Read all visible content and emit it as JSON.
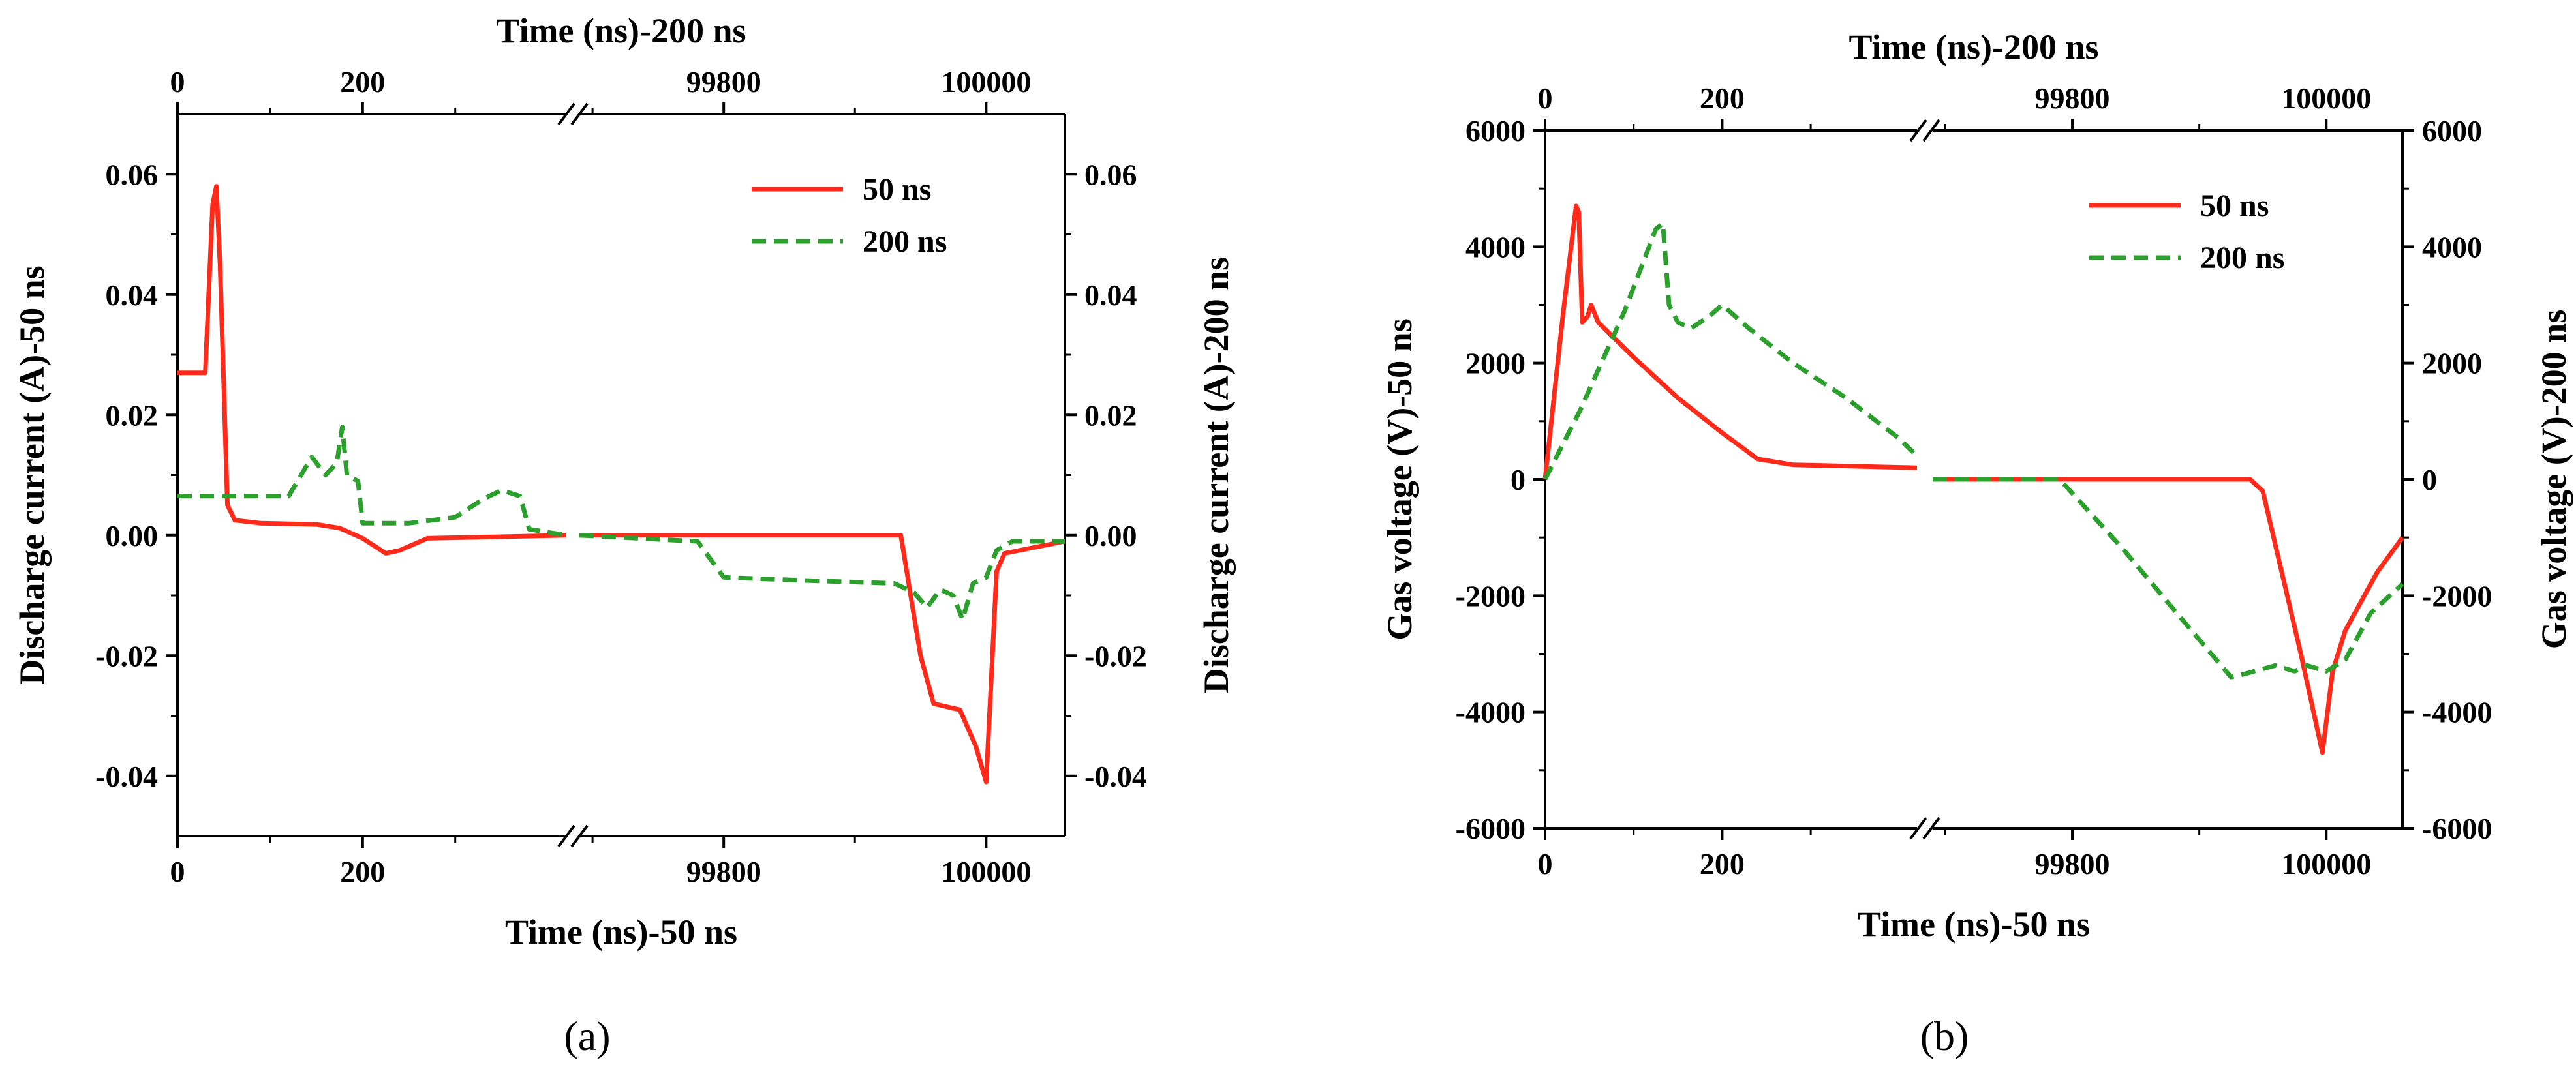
{
  "chart_data": [
    {
      "type": "line",
      "panel_label": "(a)",
      "top_xlabel": "Time (ns)-200 ns",
      "bottom_xlabel": "Time (ns)-50 ns",
      "left_ylabel": "Discharge current (A)-50 ns",
      "right_ylabel": "Discharge current (A)-200 ns",
      "x_segments": [
        {
          "xlim": [
            0,
            420
          ],
          "bottom_ticks": [
            "0",
            "200"
          ],
          "top_ticks": [
            "0",
            "200"
          ]
        },
        {
          "xlim": [
            99690,
            100060
          ],
          "bottom_ticks": [
            "99800",
            "100000"
          ],
          "top_ticks": [
            "99800",
            "100000"
          ]
        }
      ],
      "axis_break": "//",
      "ylim": [
        -0.05,
        0.07
      ],
      "yticks": [
        "0.06",
        "0.04",
        "0.02",
        "0.00",
        "-0.02",
        "-0.04"
      ],
      "ytick_values": [
        0.06,
        0.04,
        0.02,
        0.0,
        -0.02,
        -0.04
      ],
      "legend": {
        "position": "top-right",
        "entries": [
          "50 ns",
          "200 ns"
        ]
      },
      "series": [
        {
          "name": "50 ns",
          "color": "#ff2a1a",
          "style": "solid",
          "segments": [
            [
              [
                0,
                0.027
              ],
              [
                30,
                0.027
              ],
              [
                38,
                0.055
              ],
              [
                42,
                0.058
              ],
              [
                46,
                0.045
              ],
              [
                54,
                0.005
              ],
              [
                62,
                0.0025
              ],
              [
                90,
                0.002
              ],
              [
                150,
                0.0018
              ],
              [
                175,
                0.0012
              ],
              [
                200,
                -0.0005
              ],
              [
                225,
                -0.003
              ],
              [
                240,
                -0.0025
              ],
              [
                270,
                -0.0005
              ],
              [
                420,
                0.0
              ]
            ],
            [
              [
                99690,
                0.0
              ],
              [
                99935,
                0.0
              ],
              [
                99950,
                -0.02
              ],
              [
                99960,
                -0.028
              ],
              [
                99980,
                -0.029
              ],
              [
                99992,
                -0.035
              ],
              [
                100000,
                -0.041
              ],
              [
                100008,
                -0.006
              ],
              [
                100014,
                -0.003
              ],
              [
                100060,
                -0.001
              ]
            ]
          ]
        },
        {
          "name": "200 ns",
          "color": "#2ca02c",
          "style": "dashed",
          "segments": [
            [
              [
                0,
                0.0065
              ],
              [
                120,
                0.0065
              ],
              [
                145,
                0.013
              ],
              [
                160,
                0.01
              ],
              [
                172,
                0.012
              ],
              [
                178,
                0.018
              ],
              [
                183,
                0.01
              ],
              [
                195,
                0.009
              ],
              [
                200,
                0.002
              ],
              [
                250,
                0.002
              ],
              [
                300,
                0.003
              ],
              [
                330,
                0.006
              ],
              [
                350,
                0.0075
              ],
              [
                370,
                0.0065
              ],
              [
                380,
                0.001
              ],
              [
                420,
                0.0
              ]
            ],
            [
              [
                99690,
                0.0
              ],
              [
                99780,
                -0.001
              ],
              [
                99800,
                -0.007
              ],
              [
                99860,
                -0.0075
              ],
              [
                99930,
                -0.008
              ],
              [
                99945,
                -0.0095
              ],
              [
                99955,
                -0.012
              ],
              [
                99965,
                -0.009
              ],
              [
                99975,
                -0.01
              ],
              [
                99982,
                -0.014
              ],
              [
                99990,
                -0.008
              ],
              [
                100000,
                -0.007
              ],
              [
                100008,
                -0.0025
              ],
              [
                100020,
                -0.001
              ],
              [
                100060,
                -0.001
              ]
            ]
          ]
        }
      ]
    },
    {
      "type": "line",
      "panel_label": "(b)",
      "top_xlabel": "Time (ns)-200 ns",
      "bottom_xlabel": "Time (ns)-50 ns",
      "left_ylabel": "Gas voltage (V)-50 ns",
      "right_ylabel": "Gas voltage (V)-200 ns",
      "x_segments": [
        {
          "xlim": [
            0,
            420
          ],
          "bottom_ticks": [
            "0",
            "200"
          ],
          "top_ticks": [
            "0",
            "200"
          ]
        },
        {
          "xlim": [
            99690,
            100060
          ],
          "bottom_ticks": [
            "99800",
            "100000"
          ],
          "top_ticks": [
            "99800",
            "100000"
          ]
        }
      ],
      "axis_break": "//",
      "ylim": [
        -6000,
        6000
      ],
      "yticks": [
        "6000",
        "4000",
        "2000",
        "0",
        "-2000",
        "-4000",
        "-6000"
      ],
      "ytick_values": [
        6000,
        4000,
        2000,
        0,
        -2000,
        -4000,
        -6000
      ],
      "legend": {
        "position": "top-right",
        "entries": [
          "50 ns",
          "200 ns"
        ]
      },
      "series": [
        {
          "name": "50 ns",
          "color": "#ff2a1a",
          "style": "solid",
          "segments": [
            [
              [
                0,
                0
              ],
              [
                20,
                2800
              ],
              [
                35,
                4700
              ],
              [
                38,
                4600
              ],
              [
                42,
                2700
              ],
              [
                48,
                2800
              ],
              [
                52,
                3000
              ],
              [
                60,
                2700
              ],
              [
                100,
                2100
              ],
              [
                150,
                1400
              ],
              [
                200,
                800
              ],
              [
                240,
                350
              ],
              [
                280,
                250
              ],
              [
                420,
                200
              ]
            ],
            [
              [
                99690,
                0
              ],
              [
                99940,
                0
              ],
              [
                99950,
                -200
              ],
              [
                99980,
                -3000
              ],
              [
                99997,
                -4700
              ],
              [
                100005,
                -3300
              ],
              [
                100015,
                -2600
              ],
              [
                100040,
                -1600
              ],
              [
                100060,
                -1000
              ]
            ]
          ]
        },
        {
          "name": "200 ns",
          "color": "#2ca02c",
          "style": "dashed",
          "segments": [
            [
              [
                0,
                0
              ],
              [
                40,
                1200
              ],
              [
                90,
                2900
              ],
              [
                125,
                4300
              ],
              [
                133,
                4400
              ],
              [
                140,
                3000
              ],
              [
                150,
                2700
              ],
              [
                165,
                2600
              ],
              [
                185,
                2800
              ],
              [
                200,
                3000
              ],
              [
                230,
                2600
              ],
              [
                280,
                2000
              ],
              [
                340,
                1400
              ],
              [
                400,
                700
              ],
              [
                420,
                400
              ]
            ],
            [
              [
                99690,
                0
              ],
              [
                99790,
                0
              ],
              [
                99840,
                -1200
              ],
              [
                99890,
                -2500
              ],
              [
                99925,
                -3400
              ],
              [
                99935,
                -3350
              ],
              [
                99960,
                -3200
              ],
              [
                99975,
                -3300
              ],
              [
                99985,
                -3200
              ],
              [
                100000,
                -3300
              ],
              [
                100015,
                -3100
              ],
              [
                100035,
                -2300
              ],
              [
                100060,
                -1800
              ]
            ]
          ]
        }
      ]
    }
  ]
}
